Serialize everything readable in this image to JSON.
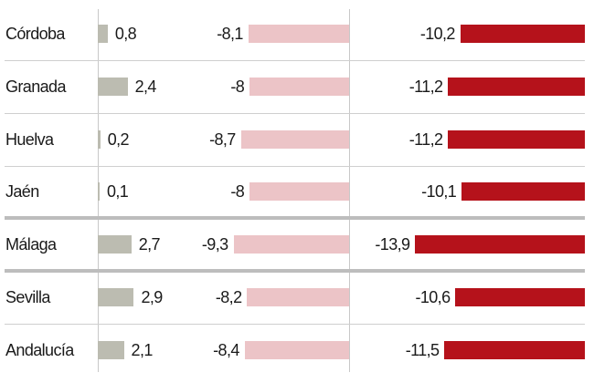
{
  "chart_data": {
    "type": "bar",
    "categories": [
      "Córdoba",
      "Granada",
      "Huelva",
      "Jaén",
      "Málaga",
      "Sevilla",
      "Andalucía"
    ],
    "series": [
      {
        "name": "col1",
        "color": "#bcbcb1",
        "values": [
          0.8,
          2.4,
          0.2,
          0.1,
          2.7,
          2.9,
          2.1
        ],
        "labels": [
          "0,8",
          "2,4",
          "0,2",
          "0,1",
          "2,7",
          "2,9",
          "2,1"
        ]
      },
      {
        "name": "col2",
        "color": "#ecc4c7",
        "values": [
          -8.1,
          -8,
          -8.7,
          -8,
          -9.3,
          -8.2,
          -8.4
        ],
        "labels": [
          "-8,1",
          "-8",
          "-8,7",
          "-8",
          "-9,3",
          "-8,2",
          "-8,4"
        ]
      },
      {
        "name": "col3",
        "color": "#b5121b",
        "values": [
          -10.2,
          -11.2,
          -11.2,
          -10.1,
          -13.9,
          -10.6,
          -11.5
        ],
        "labels": [
          "-10,2",
          "-11,2",
          "-11,2",
          "-10,1",
          "-13,9",
          "-10,6",
          "-11,5"
        ]
      }
    ],
    "separators_after": [
      3,
      4
    ]
  }
}
